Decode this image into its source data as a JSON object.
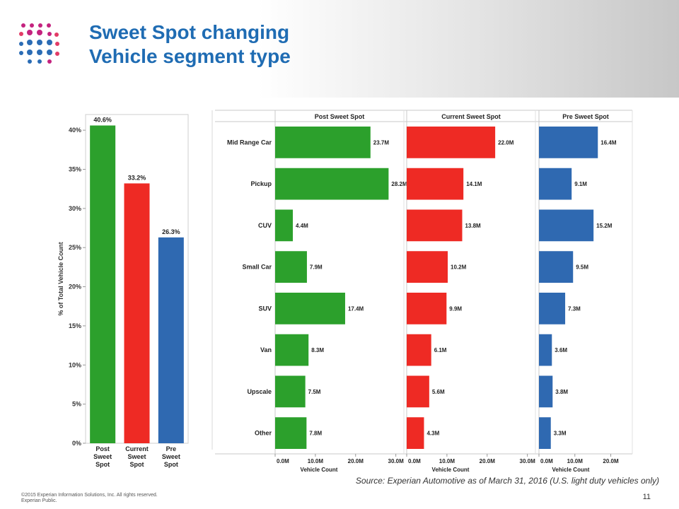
{
  "slide": {
    "title_line1": "Sweet Spot changing",
    "title_line2": "Vehicle segment type",
    "source": "Source: Experian Automotive as of March 31, 2016  (U.S. light duty vehicles only)",
    "footer_line1": "©2015  Experian Information Solutions, Inc. All rights reserved.",
    "footer_line2": "Experian Public.",
    "page_number": "11"
  },
  "colors": {
    "green": "#2ca02c",
    "red": "#ee2a24",
    "blue": "#2f69b1",
    "title": "#1f6cb3"
  },
  "chart_data": [
    {
      "type": "bar",
      "categories": [
        "Post\nSweet\nSpot",
        "Current\nSweet\nSpot",
        "Pre\nSweet\nSpot"
      ],
      "values": [
        40.6,
        33.2,
        26.3
      ],
      "data_labels": [
        "40.6%",
        "33.2%",
        "26.3%"
      ],
      "colors": [
        "#2ca02c",
        "#ee2a24",
        "#2f69b1"
      ],
      "ylabel": "% of Total Vehicle Count",
      "ylim": [
        0,
        42
      ],
      "yticks": [
        0,
        5,
        10,
        15,
        20,
        25,
        30,
        35,
        40
      ],
      "ytick_labels": [
        "0%",
        "5%",
        "10%",
        "15%",
        "20%",
        "25%",
        "30%",
        "35%",
        "40%"
      ]
    },
    {
      "type": "bar",
      "orientation": "horizontal",
      "categories": [
        "Mid Range Car",
        "Pickup",
        "CUV",
        "Small Car",
        "SUV",
        "Van",
        "Upscale",
        "Other"
      ],
      "xlabel": "Vehicle Count",
      "series": [
        {
          "name": "Post Sweet Spot",
          "color": "#2ca02c",
          "values": [
            23.7,
            28.2,
            4.4,
            7.9,
            17.4,
            8.3,
            7.5,
            7.8
          ],
          "data_labels": [
            "23.7M",
            "28.2M",
            "4.4M",
            "7.9M",
            "17.4M",
            "8.3M",
            "7.5M",
            "7.8M"
          ],
          "xlim": [
            0,
            32
          ],
          "xticks": [
            0,
            10,
            20,
            30
          ],
          "xtick_labels": [
            "0.0M",
            "10.0M",
            "20.0M",
            "30.0M"
          ]
        },
        {
          "name": "Current Sweet Spot",
          "color": "#ee2a24",
          "values": [
            22.0,
            14.1,
            13.8,
            10.2,
            9.9,
            6.1,
            5.6,
            4.3
          ],
          "data_labels": [
            "22.0M",
            "14.1M",
            "13.8M",
            "10.2M",
            "9.9M",
            "6.1M",
            "5.6M",
            "4.3M"
          ],
          "xlim": [
            0,
            32
          ],
          "xticks": [
            0,
            10,
            20,
            30
          ],
          "xtick_labels": [
            "0.0M",
            "10.0M",
            "20.0M",
            "30.0M"
          ]
        },
        {
          "name": "Pre Sweet Spot",
          "color": "#2f69b1",
          "values": [
            16.4,
            9.1,
            15.2,
            9.5,
            7.3,
            3.6,
            3.8,
            3.3
          ],
          "data_labels": [
            "16.4M",
            "9.1M",
            "15.2M",
            "9.5M",
            "7.3M",
            "3.6M",
            "3.8M",
            "3.3M"
          ],
          "xlim": [
            0,
            26
          ],
          "xticks": [
            0,
            10,
            20
          ],
          "xtick_labels": [
            "0.0M",
            "10.0M",
            "20.0M"
          ]
        }
      ]
    }
  ]
}
